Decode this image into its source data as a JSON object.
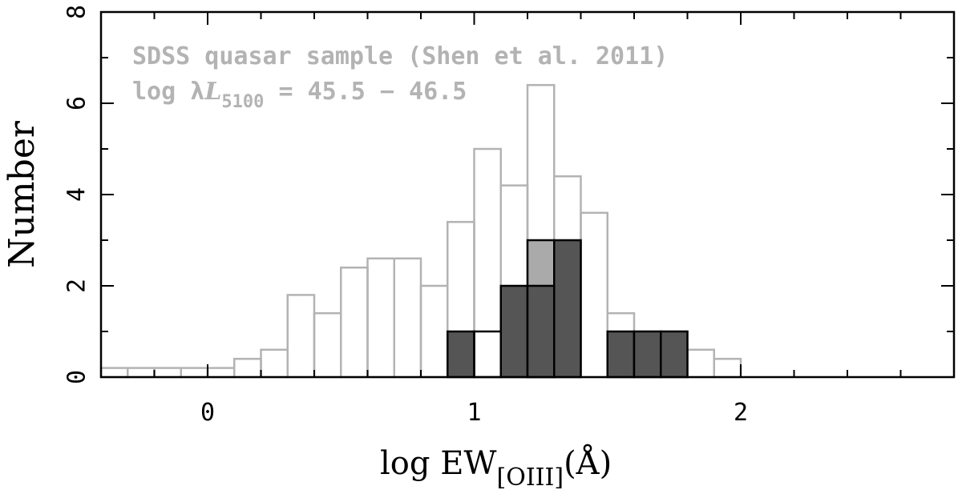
{
  "chart_data": {
    "type": "bar",
    "xlabel": {
      "main": "log EW",
      "sub": "[OIII]",
      "unit": "(Å)"
    },
    "ylabel": "Number",
    "xlim": [
      -0.4,
      2.8
    ],
    "ylim": [
      0,
      8
    ],
    "x_ticks": [
      0,
      1,
      2
    ],
    "y_ticks": [
      0,
      2,
      4,
      6,
      8
    ],
    "annotations": {
      "line1": "SDSS quasar sample (Shen et al. 2011)",
      "line2_prefix": "log λ",
      "line2_L": "L",
      "line2_sub": "5100",
      "line2_suffix": " = 45.5 − 46.5"
    },
    "series": [
      {
        "style": "outline-gray",
        "bin_width": 0.1,
        "bins": [
          {
            "x0": -0.4,
            "value": 0.2
          },
          {
            "x0": -0.3,
            "value": 0.2
          },
          {
            "x0": -0.2,
            "value": 0.2
          },
          {
            "x0": -0.1,
            "value": 0.2
          },
          {
            "x0": 0.0,
            "value": 0.2
          },
          {
            "x0": 0.1,
            "value": 0.4
          },
          {
            "x0": 0.2,
            "value": 0.6
          },
          {
            "x0": 0.3,
            "value": 1.8
          },
          {
            "x0": 0.4,
            "value": 1.4
          },
          {
            "x0": 0.5,
            "value": 2.4
          },
          {
            "x0": 0.6,
            "value": 2.6
          },
          {
            "x0": 0.7,
            "value": 2.6
          },
          {
            "x0": 0.8,
            "value": 2.0
          },
          {
            "x0": 0.9,
            "value": 3.4
          },
          {
            "x0": 1.0,
            "value": 5.0
          },
          {
            "x0": 1.1,
            "value": 4.2
          },
          {
            "x0": 1.2,
            "value": 6.4
          },
          {
            "x0": 1.3,
            "value": 4.4
          },
          {
            "x0": 1.4,
            "value": 3.6
          },
          {
            "x0": 1.5,
            "value": 1.4
          },
          {
            "x0": 1.6,
            "value": 1.0
          },
          {
            "x0": 1.7,
            "value": 1.0
          },
          {
            "x0": 1.8,
            "value": 0.6
          },
          {
            "x0": 1.9,
            "value": 0.4
          }
        ]
      },
      {
        "style": "filled-light",
        "bin_width": 0.1,
        "bins": [
          {
            "x0": 1.2,
            "value": 3
          }
        ]
      },
      {
        "style": "filled-dark",
        "bin_width": 0.1,
        "bins": [
          {
            "x0": 0.9,
            "value": 1
          },
          {
            "x0": 1.1,
            "value": 2
          },
          {
            "x0": 1.2,
            "value": 2
          },
          {
            "x0": 1.3,
            "value": 3
          },
          {
            "x0": 1.5,
            "value": 1
          },
          {
            "x0": 1.6,
            "value": 1
          },
          {
            "x0": 1.7,
            "value": 1
          }
        ]
      },
      {
        "style": "outline-black",
        "bin_width": 0.1,
        "bins": [
          {
            "x0": 1.0,
            "value": 1
          }
        ]
      }
    ],
    "colors": {
      "outline_gray": "#b3b3b3",
      "filled_light": "#aaaaaa",
      "filled_dark": "#555555",
      "edge_black": "#000000"
    }
  }
}
